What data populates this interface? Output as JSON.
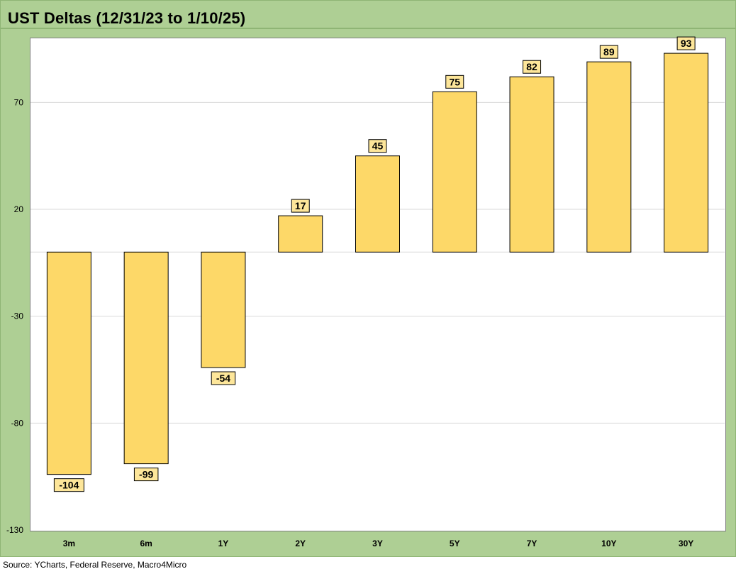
{
  "title": "UST Deltas (12/31/23 to 1/10/25)",
  "source": "Source: YCharts, Federal Reserve, Macro4Micro",
  "colors": {
    "frame": "#aecf94",
    "bar_fill": "#fdd868",
    "bar_stroke": "#000000",
    "label_fill": "#fde69a",
    "gridline": "#d9d9d9"
  },
  "chart_data": {
    "type": "bar",
    "title": "UST Deltas (12/31/23 to 1/10/25)",
    "xlabel": "",
    "ylabel": "",
    "categories": [
      "3m",
      "6m",
      "1Y",
      "2Y",
      "3Y",
      "5Y",
      "7Y",
      "10Y",
      "30Y"
    ],
    "values": [
      -104,
      -99,
      -54,
      17,
      45,
      75,
      82,
      89,
      93
    ],
    "data_labels": [
      "-104",
      "-99",
      "-54",
      "17",
      "45",
      "75",
      "82",
      "89",
      "93"
    ],
    "ylim": [
      -130,
      100
    ],
    "yticks": [
      -130,
      -80,
      -30,
      20,
      70
    ],
    "grid": true,
    "legend": "none"
  }
}
